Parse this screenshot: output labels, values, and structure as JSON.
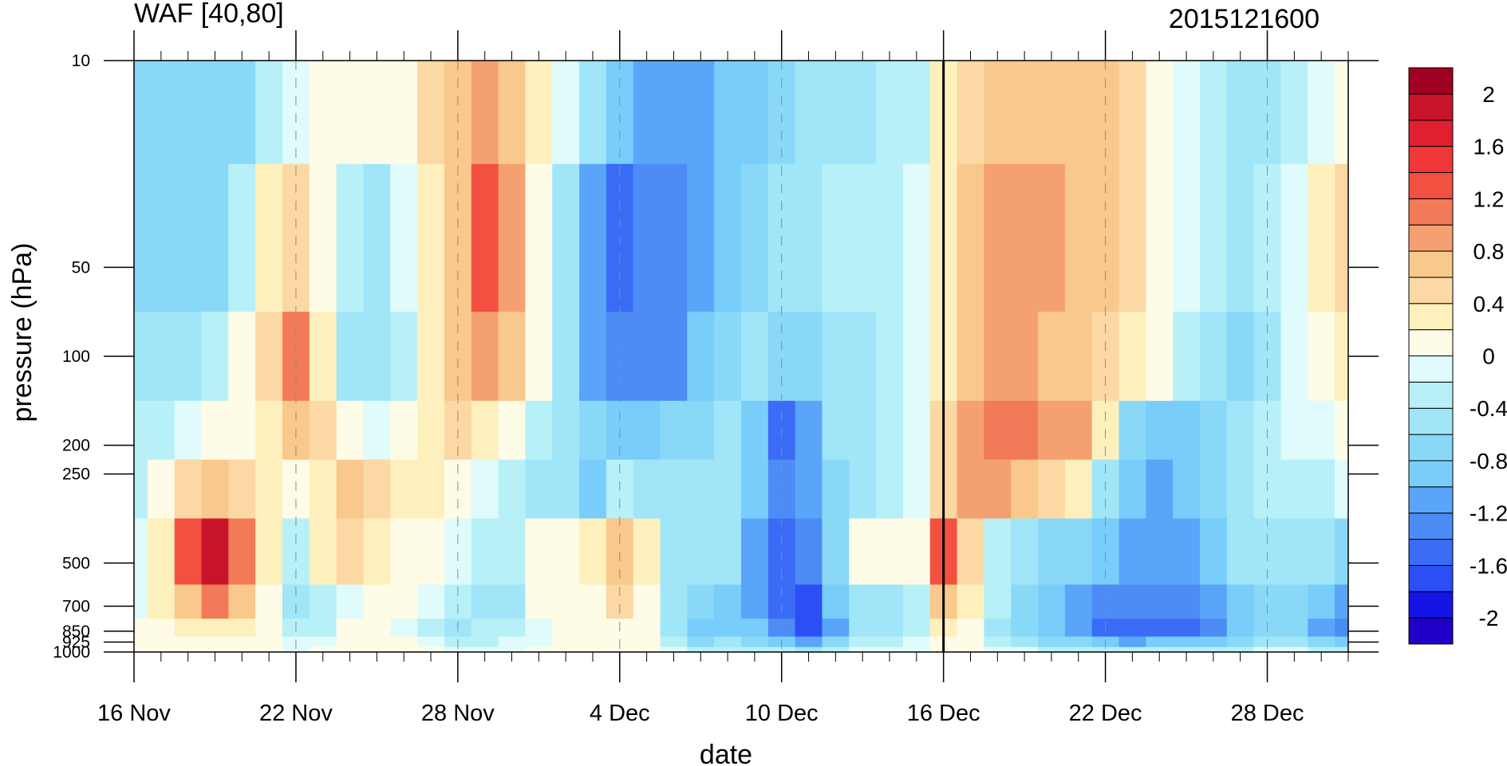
{
  "chart_data": {
    "type": "heatmap",
    "title": "WAF [40,80]",
    "subtitle": "2015121600",
    "xlabel": "date",
    "ylabel": "pressure (hPa)",
    "x": [
      "16 Nov",
      "17 Nov",
      "18 Nov",
      "19 Nov",
      "20 Nov",
      "21 Nov",
      "22 Nov",
      "23 Nov",
      "24 Nov",
      "25 Nov",
      "26 Nov",
      "27 Nov",
      "28 Nov",
      "29 Nov",
      "30 Nov",
      "1 Dec",
      "2 Dec",
      "3 Dec",
      "4 Dec",
      "5 Dec",
      "6 Dec",
      "7 Dec",
      "8 Dec",
      "9 Dec",
      "10 Dec",
      "11 Dec",
      "12 Dec",
      "13 Dec",
      "14 Dec",
      "15 Dec",
      "16 Dec",
      "17 Dec",
      "18 Dec",
      "19 Dec",
      "20 Dec",
      "21 Dec",
      "22 Dec",
      "23 Dec",
      "24 Dec",
      "25 Dec",
      "26 Dec",
      "27 Dec",
      "28 Dec",
      "29 Dec",
      "30 Dec",
      "31 Dec"
    ],
    "x_tick_labels": [
      "16 Nov",
      "22 Nov",
      "28 Nov",
      "4 Dec",
      "10 Dec",
      "16 Dec",
      "22 Dec",
      "28 Dec"
    ],
    "y": [
      10,
      50,
      100,
      200,
      250,
      500,
      700,
      850,
      925,
      1000
    ],
    "y_tick_labels": [
      "10",
      "50",
      "100",
      "200",
      "250",
      "500",
      "700",
      "850",
      "925",
      "1000"
    ],
    "y_scale": "log",
    "y_reversed": true,
    "values": [
      [
        -0.8,
        -0.8,
        -0.8,
        -0.8,
        -0.7,
        -0.4,
        -0.1,
        0,
        0,
        0,
        0.1,
        0.4,
        0.6,
        0.8,
        0.7,
        0.3,
        -0.2,
        -0.6,
        -0.9,
        -1.1,
        -1.1,
        -1.1,
        -1.0,
        -0.9,
        -0.7,
        -0.6,
        -0.5,
        -0.5,
        -0.4,
        -0.3,
        0.2,
        0.5,
        0.7,
        0.7,
        0.7,
        0.7,
        0.6,
        0.4,
        0.1,
        -0.2,
        -0.4,
        -0.6,
        -0.5,
        -0.3,
        -0.1,
        0.1
      ],
      [
        -0.7,
        -0.8,
        -0.8,
        -0.7,
        -0.4,
        0.3,
        0.5,
        0.1,
        -0.4,
        -0.5,
        -0.2,
        0.3,
        0.7,
        1.2,
        0.8,
        0.1,
        -0.6,
        -1.2,
        -1.5,
        -1.4,
        -1.3,
        -1.2,
        -0.9,
        -0.7,
        -0.6,
        -0.5,
        -0.4,
        -0.4,
        -0.3,
        -0.2,
        0.3,
        0.6,
        0.8,
        0.8,
        0.8,
        0.7,
        0.6,
        0.4,
        0.1,
        -0.2,
        -0.4,
        -0.5,
        -0.4,
        -0.1,
        0.2,
        0.5
      ],
      [
        -0.6,
        -0.6,
        -0.5,
        -0.3,
        0,
        0.5,
        1.0,
        0.2,
        -0.5,
        -0.6,
        -0.3,
        0.2,
        0.6,
        0.8,
        0.6,
        0,
        -0.5,
        -1.1,
        -1.4,
        -1.4,
        -1.3,
        -1.0,
        -0.8,
        -0.6,
        -0.8,
        -0.7,
        -0.5,
        -0.5,
        -0.4,
        -0.2,
        0.3,
        0.6,
        0.8,
        0.8,
        0.7,
        0.6,
        0.5,
        0.3,
        0,
        -0.3,
        -0.5,
        -0.7,
        -0.5,
        -0.2,
        0.1,
        0.3
      ],
      [
        -0.4,
        -0.3,
        -0.2,
        0,
        0.1,
        0.3,
        0.6,
        0.4,
        0,
        -0.1,
        0.1,
        0.3,
        0.4,
        0.2,
        0,
        -0.3,
        -0.5,
        -0.8,
        -1.0,
        -0.9,
        -0.8,
        -0.7,
        -0.6,
        -1.0,
        -1.5,
        -1.2,
        -0.6,
        -0.5,
        -0.4,
        -0.1,
        0.5,
        0.8,
        1.0,
        1.0,
        0.9,
        0.8,
        0.2,
        -0.8,
        -1.0,
        -0.9,
        -0.7,
        -0.5,
        -0.4,
        -0.2,
        -0.1,
        0
      ],
      [
        -0.3,
        0.1,
        0.5,
        0.6,
        0.5,
        0.3,
        0,
        0.3,
        0.6,
        0.4,
        0.2,
        0.2,
        0.1,
        -0.1,
        -0.3,
        -0.5,
        -0.6,
        -0.9,
        -0.4,
        -0.5,
        -0.5,
        -0.5,
        -0.6,
        -1.0,
        -1.3,
        -1.2,
        -0.7,
        -0.5,
        -0.4,
        -0.2,
        0.4,
        0.8,
        0.9,
        0.6,
        0.5,
        0.3,
        -0.5,
        -1.0,
        -1.1,
        -0.9,
        -0.7,
        -0.5,
        -0.4,
        -0.3,
        -0.3,
        -0.2
      ],
      [
        -0.2,
        0.3,
        1.2,
        1.9,
        1.0,
        0.2,
        -0.3,
        0.3,
        0.5,
        0.3,
        0.1,
        0,
        -0.2,
        -0.3,
        -0.4,
        0,
        0.1,
        0.3,
        0.6,
        0.2,
        -0.5,
        -0.6,
        -0.6,
        -1.2,
        -1.6,
        -1.4,
        -0.8,
        0,
        0,
        0,
        1.3,
        0.4,
        -0.3,
        -0.6,
        -0.7,
        -0.8,
        -1.0,
        -1.1,
        -1.1,
        -1.1,
        -0.9,
        -0.6,
        -0.5,
        -0.5,
        -0.6,
        -0.7
      ],
      [
        -0.1,
        0.2,
        0.6,
        1.0,
        0.6,
        0.1,
        -0.5,
        -0.3,
        -0.1,
        0,
        0.1,
        -0.2,
        -0.4,
        -0.6,
        -0.5,
        0,
        0.1,
        0.1,
        0.4,
        0.1,
        -0.5,
        -0.7,
        -0.9,
        -1.2,
        -1.6,
        -1.8,
        -1.0,
        -0.6,
        -0.6,
        -0.4,
        0.6,
        0.2,
        -0.4,
        -0.7,
        -0.9,
        -1.1,
        -1.3,
        -1.4,
        -1.4,
        -1.4,
        -1.2,
        -0.9,
        -0.7,
        -0.7,
        -1.0,
        -1.2
      ],
      [
        0,
        0.1,
        0.3,
        0.3,
        0.2,
        0,
        -0.4,
        -0.3,
        0,
        0,
        -0.1,
        -0.3,
        -0.5,
        -0.4,
        -0.3,
        -0.2,
        0,
        0,
        0.1,
        0,
        -0.5,
        -1.0,
        -0.9,
        -1.0,
        -1.4,
        -1.8,
        -1.2,
        -0.6,
        -0.5,
        -0.3,
        0.2,
        0,
        -0.5,
        -0.8,
        -1.0,
        -1.2,
        -1.5,
        -1.6,
        -1.5,
        -1.6,
        -1.3,
        -1.0,
        -0.8,
        -0.8,
        -1.2,
        -1.4
      ],
      [
        0,
        0,
        0.1,
        0.1,
        0,
        0,
        -0.2,
        -0.1,
        0,
        0,
        0,
        -0.1,
        -0.3,
        -0.3,
        -0.2,
        -0.1,
        0,
        0,
        0,
        0,
        -0.4,
        -0.7,
        -0.6,
        -0.7,
        -1.0,
        -1.2,
        -0.8,
        -0.4,
        -0.3,
        -0.2,
        0.1,
        0,
        -0.3,
        -0.5,
        -0.7,
        -0.8,
        -1.0,
        -1.1,
        -1.0,
        -1.0,
        -0.9,
        -0.7,
        -0.6,
        -0.6,
        -0.8,
        -0.9
      ],
      [
        0,
        0,
        0,
        0,
        0,
        0,
        -0.1,
        0,
        0,
        0,
        0,
        0,
        -0.1,
        -0.1,
        -0.1,
        0,
        0,
        0,
        0,
        0,
        -0.2,
        -0.3,
        -0.3,
        -0.3,
        -0.4,
        -0.5,
        -0.3,
        -0.2,
        -0.1,
        -0.1,
        0,
        0,
        -0.1,
        -0.2,
        -0.3,
        -0.3,
        -0.4,
        -0.4,
        -0.4,
        -0.4,
        -0.3,
        -0.3,
        -0.2,
        -0.2,
        -0.3,
        -0.3
      ]
    ],
    "colorbar": {
      "levels": [
        -2.2,
        -2.0,
        -1.8,
        -1.6,
        -1.4,
        -1.2,
        -1.0,
        -0.8,
        -0.6,
        -0.4,
        -0.2,
        0,
        0.2,
        0.4,
        0.6,
        0.8,
        1.0,
        1.2,
        1.4,
        1.6,
        1.8,
        2.0,
        2.2
      ],
      "labels": [
        "2",
        "1.6",
        "1.2",
        "0.8",
        "0.4",
        "0",
        "-0.4",
        "-0.8",
        "-1.2",
        "-1.6",
        "-2"
      ],
      "colors": [
        "#1e00c8",
        "#1414e6",
        "#2b4ef5",
        "#3a6cf5",
        "#4d8bf5",
        "#5aa5fa",
        "#78cdfa",
        "#8ad8f8",
        "#a0e6f8",
        "#b8f0f8",
        "#e0fbfb",
        "#fefbe6",
        "#fdf0bc",
        "#fbd8a4",
        "#f9c88c",
        "#f5a070",
        "#f27a58",
        "#f25040",
        "#f03838",
        "#e02030",
        "#c81428",
        "#a00022"
      ],
      "placement": "right"
    },
    "annotations": [
      "vertical line at 16 Dec",
      "dashed vertical gridlines every 6 days"
    ],
    "grid": false
  }
}
